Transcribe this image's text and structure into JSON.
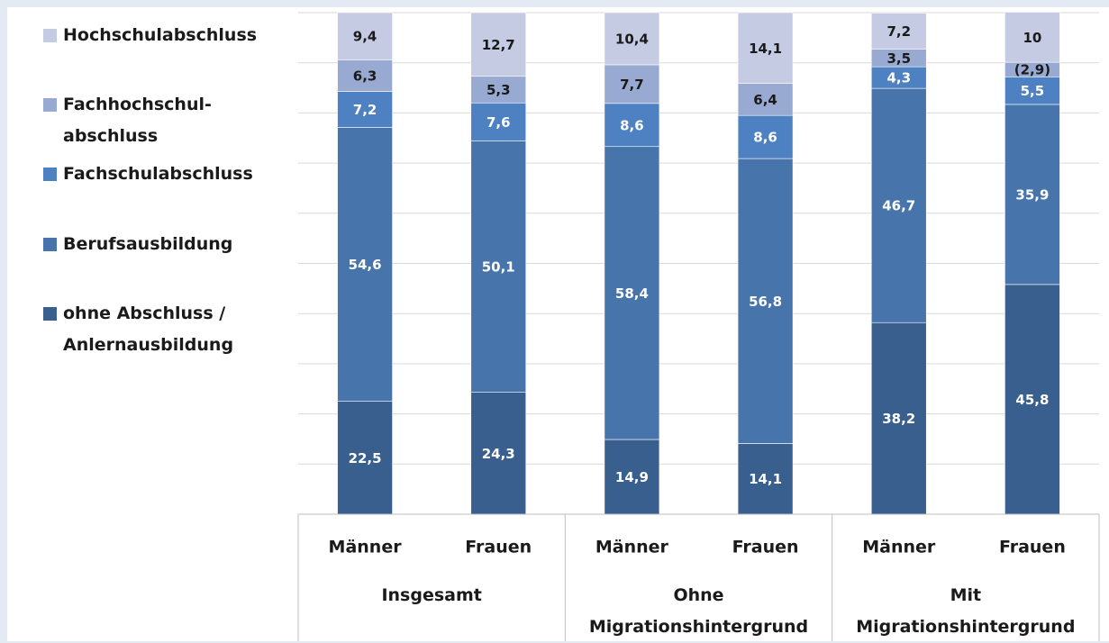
{
  "chart_data": {
    "type": "stacked_bar",
    "categories": [
      "Männer",
      "Frauen",
      "Männer",
      "Frauen",
      "Männer",
      "Frauen"
    ],
    "groups": [
      "Insgesamt",
      "Ohne Migrationshintergrund",
      "Mit Migrationshintergrund"
    ],
    "series": [
      {
        "name": "ohne Abschluss / Anlernausbildung",
        "color": "#395f8f",
        "label_color": "#ffffff",
        "values": [
          22.5,
          24.3,
          14.9,
          14.1,
          38.2,
          45.8
        ],
        "value_labels": [
          "22,5",
          "24,3",
          "14,9",
          "14,1",
          "38,2",
          "45,8"
        ]
      },
      {
        "name": "Berufsausbildung",
        "color": "#4775ab",
        "label_color": "#ffffff",
        "values": [
          54.6,
          50.1,
          58.4,
          56.8,
          46.7,
          35.9
        ],
        "value_labels": [
          "54,6",
          "50,1",
          "58,4",
          "56,8",
          "46,7",
          "35,9"
        ]
      },
      {
        "name": "Fachschulabschluss",
        "color": "#4e81c1",
        "label_color": "#ffffff",
        "values": [
          7.2,
          7.6,
          8.6,
          8.6,
          4.3,
          5.5
        ],
        "value_labels": [
          "7,2",
          "7,6",
          "8,6",
          "8,6",
          "4,3",
          "5,5"
        ]
      },
      {
        "name": "Fachhochschul-abschluss",
        "color": "#98aad1",
        "label_color": "#1a1a1a",
        "values": [
          6.3,
          5.3,
          7.7,
          6.4,
          3.5,
          2.9
        ],
        "value_labels": [
          "6,3",
          "5,3",
          "7,7",
          "6,4",
          "3,5",
          "(2,9)"
        ]
      },
      {
        "name": "Hochschulabschluss",
        "color": "#c5cbe2",
        "label_color": "#1a1a1a",
        "values": [
          9.4,
          12.7,
          10.4,
          14.1,
          7.2,
          10
        ],
        "value_labels": [
          "9,4",
          "12,7",
          "10,4",
          "14,1",
          "7,2",
          "10"
        ]
      }
    ],
    "ylim": [
      0,
      100
    ],
    "yticks": [
      0,
      10,
      20,
      30,
      40,
      50,
      60,
      70,
      80,
      90,
      100
    ],
    "grid": true
  }
}
